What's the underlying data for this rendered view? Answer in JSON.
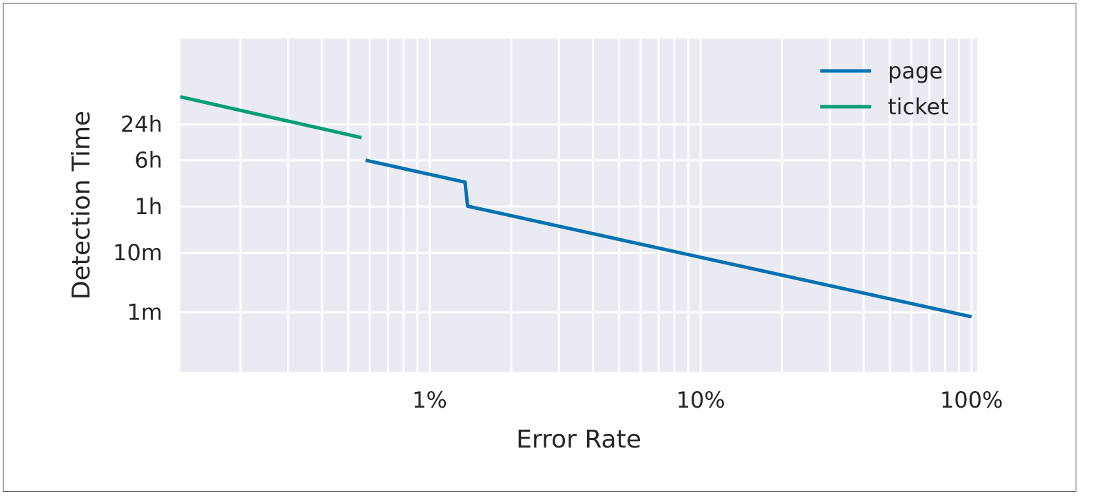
{
  "chart_data": {
    "type": "line",
    "title": "",
    "xlabel": "Error Rate",
    "ylabel": "Detection Time",
    "x_scale": "log",
    "y_scale": "log",
    "xlim": [
      0.12,
      105
    ],
    "ylim_minutes": [
      0.1,
      40000
    ],
    "x_ticks": [
      {
        "value": 1,
        "label": "1%"
      },
      {
        "value": 10,
        "label": "10%"
      },
      {
        "value": 100,
        "label": "100%"
      }
    ],
    "y_ticks": [
      {
        "value": 1,
        "label": "1m"
      },
      {
        "value": 10,
        "label": "10m"
      },
      {
        "value": 60,
        "label": "1h"
      },
      {
        "value": 360,
        "label": "6h"
      },
      {
        "value": 1440,
        "label": "24h"
      }
    ],
    "grid": true,
    "legend_position": "top-right",
    "series": [
      {
        "name": "page",
        "color": "#0072B2",
        "points": [
          [
            0.58,
            360
          ],
          [
            1.35,
            154
          ],
          [
            1.38,
            61
          ],
          [
            100,
            0.84
          ]
        ]
      },
      {
        "name": "ticket",
        "color": "#009E73",
        "points": [
          [
            0.12,
            4200
          ],
          [
            0.56,
            865
          ]
        ]
      }
    ]
  }
}
